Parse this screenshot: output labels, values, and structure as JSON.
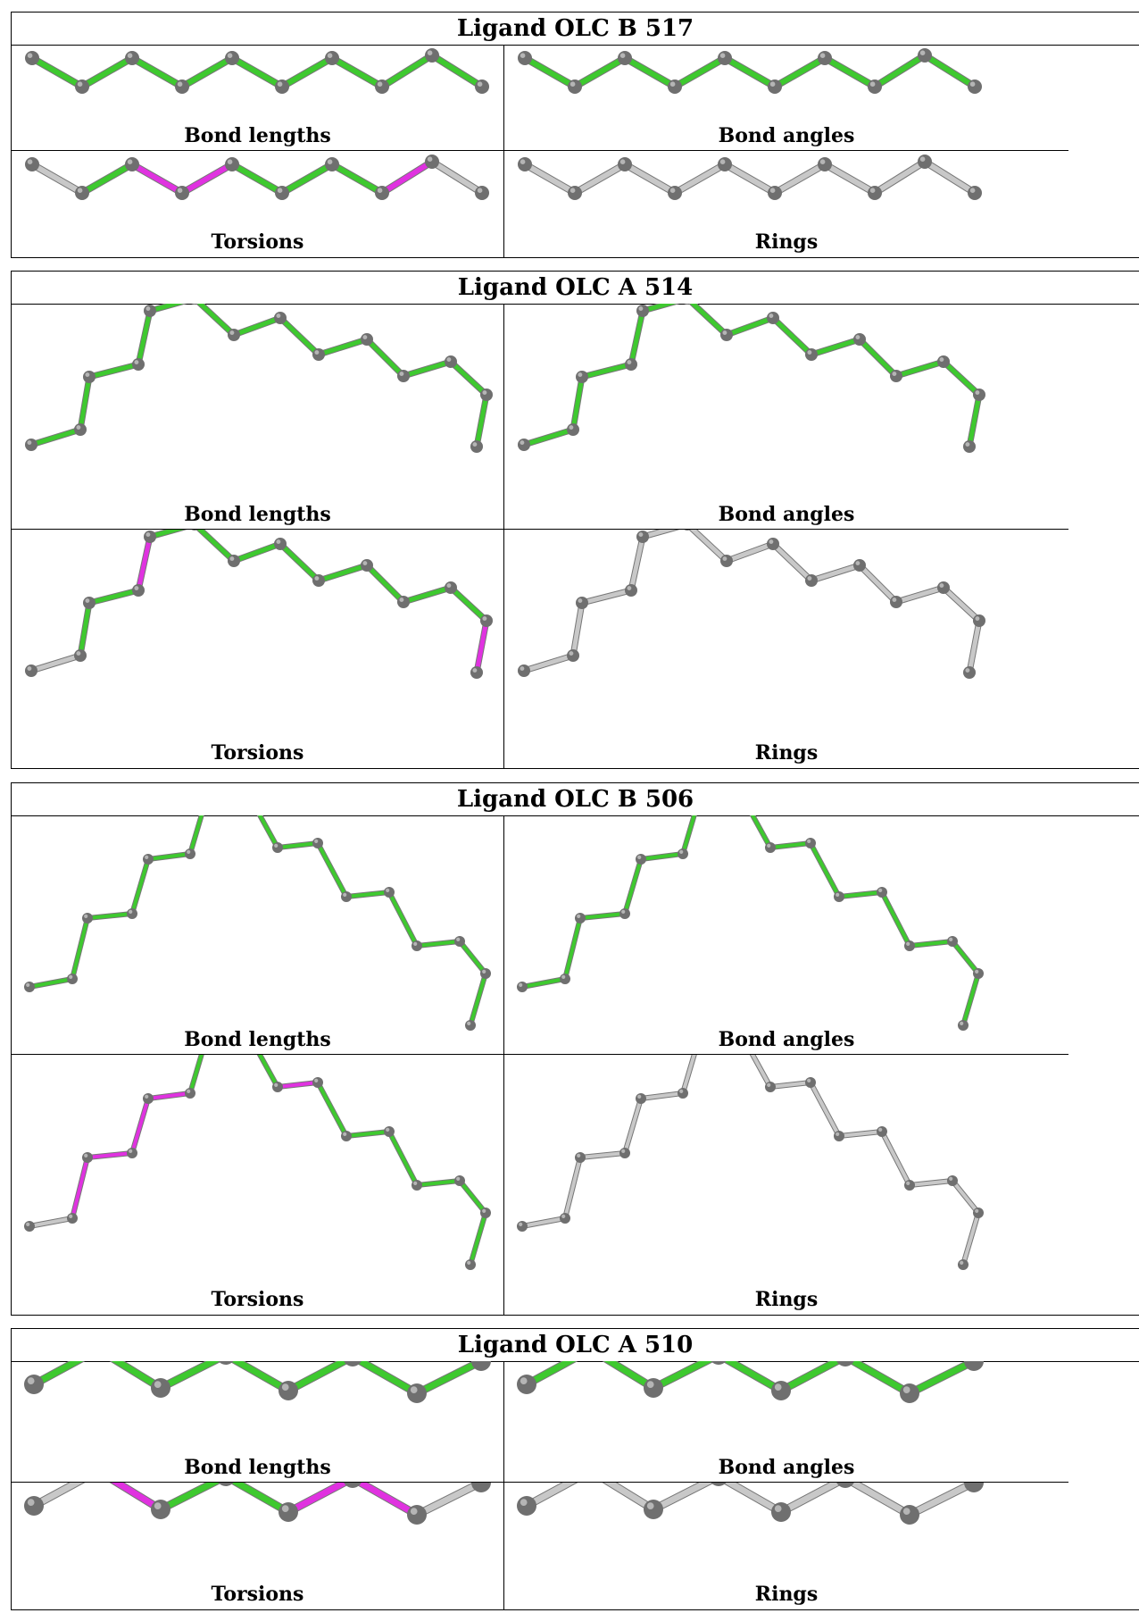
{
  "colors": {
    "bond_ok": "#3ec92f",
    "bond_outlier": "#e032e0",
    "bond_neutral": "#c8c8c8",
    "atom": "#6f6f6f"
  },
  "ligands": [
    {
      "title": "Ligand OLC B 517",
      "panels": [
        {
          "label": "Bond lengths",
          "bond_colors": [
            "ok",
            "ok",
            "ok",
            "ok",
            "ok",
            "ok",
            "ok",
            "ok",
            "ok"
          ]
        },
        {
          "label": "Bond angles",
          "bond_colors": [
            "ok",
            "ok",
            "ok",
            "ok",
            "ok",
            "ok",
            "ok",
            "ok",
            "ok"
          ]
        },
        {
          "label": "Torsions",
          "bond_colors": [
            "neutral",
            "ok",
            "outlier",
            "outlier",
            "ok",
            "ok",
            "ok",
            "outlier",
            "neutral"
          ]
        },
        {
          "label": "Rings",
          "bond_colors": [
            "neutral",
            "neutral",
            "neutral",
            "neutral",
            "neutral",
            "neutral",
            "neutral",
            "neutral",
            "neutral"
          ]
        }
      ]
    },
    {
      "title": "Ligand OLC A 514",
      "panels": [
        {
          "label": "Bond lengths",
          "bond_colors": [
            "ok",
            "ok",
            "ok",
            "ok",
            "ok",
            "ok",
            "ok",
            "ok",
            "ok",
            "ok",
            "ok",
            "ok",
            "ok",
            "ok",
            "ok",
            "ok",
            "ok"
          ]
        },
        {
          "label": "Bond angles",
          "bond_colors": [
            "ok",
            "ok",
            "ok",
            "ok",
            "ok",
            "ok",
            "ok",
            "ok",
            "ok",
            "ok",
            "ok",
            "ok",
            "ok",
            "ok",
            "ok",
            "ok",
            "ok"
          ]
        },
        {
          "label": "Torsions",
          "bond_colors": [
            "neutral",
            "ok",
            "ok",
            "outlier",
            "ok",
            "ok",
            "ok",
            "ok",
            "ok",
            "ok",
            "ok",
            "ok",
            "outlier",
            "ok",
            "ok",
            "ok",
            "neutral"
          ]
        },
        {
          "label": "Rings",
          "bond_colors": [
            "neutral",
            "neutral",
            "neutral",
            "neutral",
            "neutral",
            "neutral",
            "neutral",
            "neutral",
            "neutral",
            "neutral",
            "neutral",
            "neutral",
            "neutral",
            "neutral",
            "neutral",
            "neutral",
            "neutral"
          ]
        }
      ]
    },
    {
      "title": "Ligand OLC B 506",
      "panels": [
        {
          "label": "Bond lengths",
          "bond_colors": [
            "ok",
            "ok",
            "ok",
            "ok",
            "ok",
            "ok",
            "ok",
            "ok",
            "ok",
            "ok",
            "ok",
            "ok",
            "ok",
            "ok",
            "ok",
            "ok",
            "ok",
            "ok",
            "ok",
            "ok"
          ]
        },
        {
          "label": "Bond angles",
          "bond_colors": [
            "ok",
            "ok",
            "ok",
            "ok",
            "ok",
            "ok",
            "ok",
            "ok",
            "ok",
            "ok",
            "ok",
            "ok",
            "ok",
            "ok",
            "ok",
            "ok",
            "ok",
            "ok",
            "ok",
            "ok"
          ]
        },
        {
          "label": "Torsions",
          "bond_colors": [
            "neutral",
            "outlier",
            "outlier",
            "outlier",
            "outlier",
            "ok",
            "ok",
            "ok",
            "outlier",
            "ok",
            "ok",
            "ok",
            "ok",
            "ok",
            "ok",
            "ok",
            "ok",
            "ok",
            "ok",
            "neutral"
          ]
        },
        {
          "label": "Rings",
          "bond_colors": [
            "neutral",
            "neutral",
            "neutral",
            "neutral",
            "neutral",
            "neutral",
            "neutral",
            "neutral",
            "neutral",
            "neutral",
            "neutral",
            "neutral",
            "neutral",
            "neutral",
            "neutral",
            "neutral",
            "neutral",
            "neutral",
            "neutral",
            "neutral"
          ]
        }
      ]
    },
    {
      "title": "Ligand OLC A 510",
      "panels": [
        {
          "label": "Bond lengths",
          "bond_colors": [
            "ok",
            "ok",
            "ok",
            "ok",
            "ok",
            "ok",
            "ok"
          ]
        },
        {
          "label": "Bond angles",
          "bond_colors": [
            "ok",
            "ok",
            "ok",
            "ok",
            "ok",
            "ok",
            "ok"
          ]
        },
        {
          "label": "Torsions",
          "bond_colors": [
            "neutral",
            "outlier",
            "ok",
            "ok",
            "outlier",
            "outlier",
            "neutral"
          ]
        },
        {
          "label": "Rings",
          "bond_colors": [
            "neutral",
            "neutral",
            "neutral",
            "neutral",
            "neutral",
            "neutral",
            "neutral"
          ]
        }
      ]
    }
  ]
}
